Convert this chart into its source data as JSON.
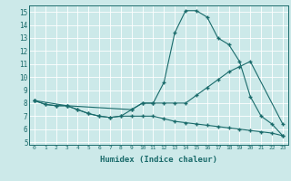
{
  "xlabel": "Humidex (Indice chaleur)",
  "xlim": [
    -0.5,
    23.5
  ],
  "ylim": [
    4.8,
    15.5
  ],
  "yticks": [
    5,
    6,
    7,
    8,
    9,
    10,
    11,
    12,
    13,
    14,
    15
  ],
  "xticks": [
    0,
    1,
    2,
    3,
    4,
    5,
    6,
    7,
    8,
    9,
    10,
    11,
    12,
    13,
    14,
    15,
    16,
    17,
    18,
    19,
    20,
    21,
    22,
    23
  ],
  "bg_color": "#cce9e9",
  "grid_color": "#ffffff",
  "line_color": "#1a6b6b",
  "line1_x": [
    0,
    1,
    2,
    3,
    4,
    5,
    6,
    7,
    8,
    9,
    10,
    11,
    12,
    13,
    14,
    15,
    16,
    17,
    18,
    19,
    20,
    21,
    22,
    23
  ],
  "line1_y": [
    8.2,
    7.9,
    7.8,
    7.8,
    7.5,
    7.2,
    7.0,
    6.9,
    7.0,
    7.5,
    8.0,
    8.0,
    9.6,
    13.4,
    15.1,
    15.1,
    14.6,
    13.0,
    12.5,
    11.2,
    8.5,
    7.0,
    6.4,
    5.5
  ],
  "line2_x": [
    0,
    3,
    9,
    10,
    11,
    12,
    13,
    14,
    15,
    16,
    17,
    18,
    19,
    20,
    23
  ],
  "line2_y": [
    8.2,
    7.8,
    7.5,
    8.0,
    8.0,
    8.0,
    8.0,
    8.0,
    8.6,
    9.2,
    9.8,
    10.4,
    10.8,
    11.2,
    6.4
  ],
  "line3_x": [
    0,
    1,
    2,
    3,
    4,
    5,
    6,
    7,
    8,
    9,
    10,
    11,
    12,
    13,
    14,
    15,
    16,
    17,
    18,
    19,
    20,
    21,
    22,
    23
  ],
  "line3_y": [
    8.2,
    7.9,
    7.8,
    7.8,
    7.5,
    7.2,
    7.0,
    6.9,
    7.0,
    7.0,
    7.0,
    7.0,
    6.8,
    6.6,
    6.5,
    6.4,
    6.3,
    6.2,
    6.1,
    6.0,
    5.9,
    5.8,
    5.7,
    5.5
  ]
}
